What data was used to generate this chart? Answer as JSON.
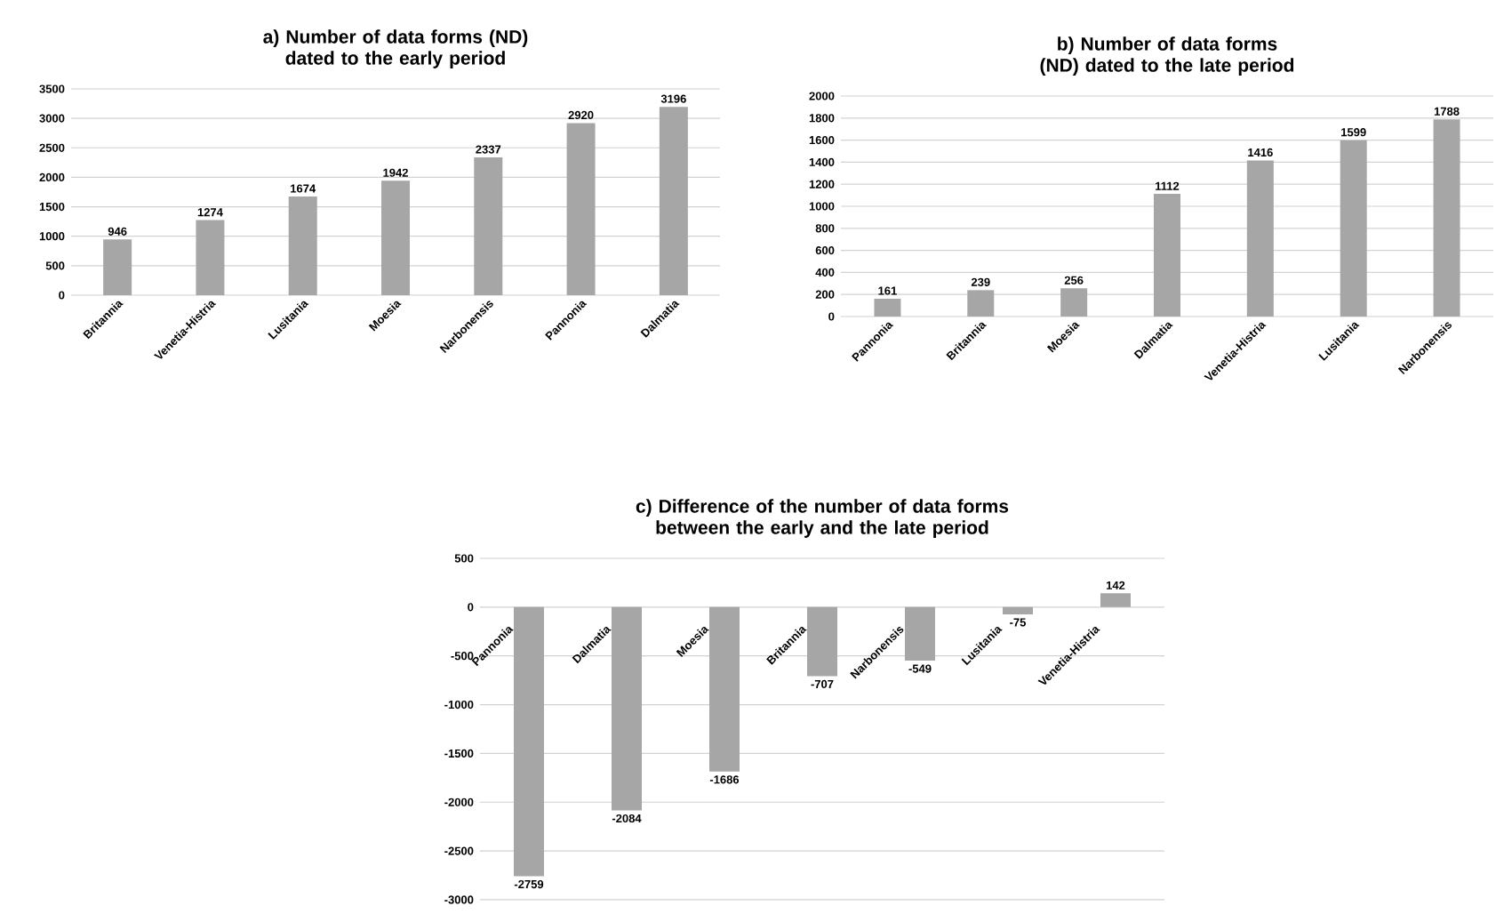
{
  "chart_data": [
    {
      "type": "bar",
      "title": "a) Number of data forms (ND) dated to the early period",
      "categories": [
        "Britannia",
        "Venetia-Histria",
        "Lusitania",
        "Moesia",
        "Narbonensis",
        "Pannonia",
        "Dalmatia"
      ],
      "values": [
        946,
        1274,
        1674,
        1942,
        2337,
        2920,
        3196
      ],
      "color": "#a6a6a6",
      "ylim": [
        0,
        3500
      ],
      "yticks": [
        0,
        500,
        1000,
        1500,
        2000,
        2500,
        3000,
        3500
      ],
      "grid": "y",
      "data_labels": true
    },
    {
      "type": "bar",
      "title": "b) Number of data forms (ND) dated to the late period",
      "categories": [
        "Pannonia",
        "Britannia",
        "Moesia",
        "Dalmatia",
        "Venetia-Histria",
        "Lusitania",
        "Narbonensis"
      ],
      "values": [
        161,
        239,
        256,
        1112,
        1416,
        1599,
        1788
      ],
      "color": "#a6a6a6",
      "ylim": [
        0,
        2000
      ],
      "yticks": [
        0,
        200,
        400,
        600,
        800,
        1000,
        1200,
        1400,
        1600,
        1800,
        2000
      ],
      "grid": "y",
      "data_labels": true
    },
    {
      "type": "bar",
      "title": "c) Difference of the number of data forms between the early and the late period",
      "categories": [
        "Pannonia",
        "Dalmatia",
        "Moesia",
        "Britannia",
        "Narbonensis",
        "Lusitania",
        "Venetia-Histria"
      ],
      "values": [
        -2759,
        -2084,
        -1686,
        -707,
        -549,
        -75,
        142
      ],
      "color": "#a6a6a6",
      "ylim": [
        -3000,
        500
      ],
      "yticks": [
        -3000,
        -2500,
        -2000,
        -1500,
        -1000,
        -500,
        0,
        500
      ],
      "grid": "y",
      "data_labels": true
    }
  ]
}
